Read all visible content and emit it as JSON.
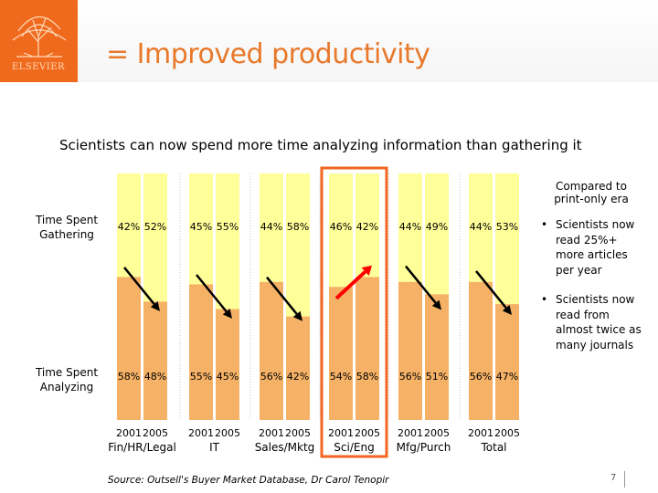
{
  "logo_text": "ELSEVIER",
  "title": "= Improved productivity",
  "subtitle": "Scientists can now spend more time analyzing information than gathering it",
  "compared_note": "Compared to print-only era",
  "row_labels": {
    "top": "Time Spent Gathering",
    "bottom": "Time Spent Analyzing"
  },
  "bullets": [
    "Scientists now read 25%+ more articles per year",
    "Scientists now read from almost twice as many journals"
  ],
  "source": "Source: Outsell's Buyer Market Database, Dr Carol Tenopir",
  "page_number": "7",
  "colors": {
    "gathering": "#ffff99",
    "analyzing": "#f5b266",
    "arrow": "#000000",
    "highlight_arrow": "#ff0000",
    "highlight_box": "#f26522",
    "title": "#e8782a"
  },
  "chart_data": {
    "type": "bar",
    "stacked": true,
    "percent_stacked": true,
    "categories": [
      "Fin/HR/Legal",
      "IT",
      "Sales/Mktg",
      "Sci/Eng",
      "Mfg/Purch",
      "Total"
    ],
    "years": [
      "2001",
      "2005"
    ],
    "series": [
      {
        "name": "Time Spent Gathering",
        "labels": [
          "42%",
          "52%",
          "45%",
          "55%",
          "44%",
          "58%",
          "46%",
          "42%",
          "44%",
          "49%",
          "44%",
          "53%"
        ]
      },
      {
        "name": "Time Spent Analyzing",
        "labels": [
          "58%",
          "48%",
          "55%",
          "45%",
          "56%",
          "42%",
          "54%",
          "58%",
          "56%",
          "51%",
          "56%",
          "47%"
        ]
      }
    ],
    "highlighted_category": "Sci/Eng",
    "ylim": [
      0,
      100
    ]
  }
}
